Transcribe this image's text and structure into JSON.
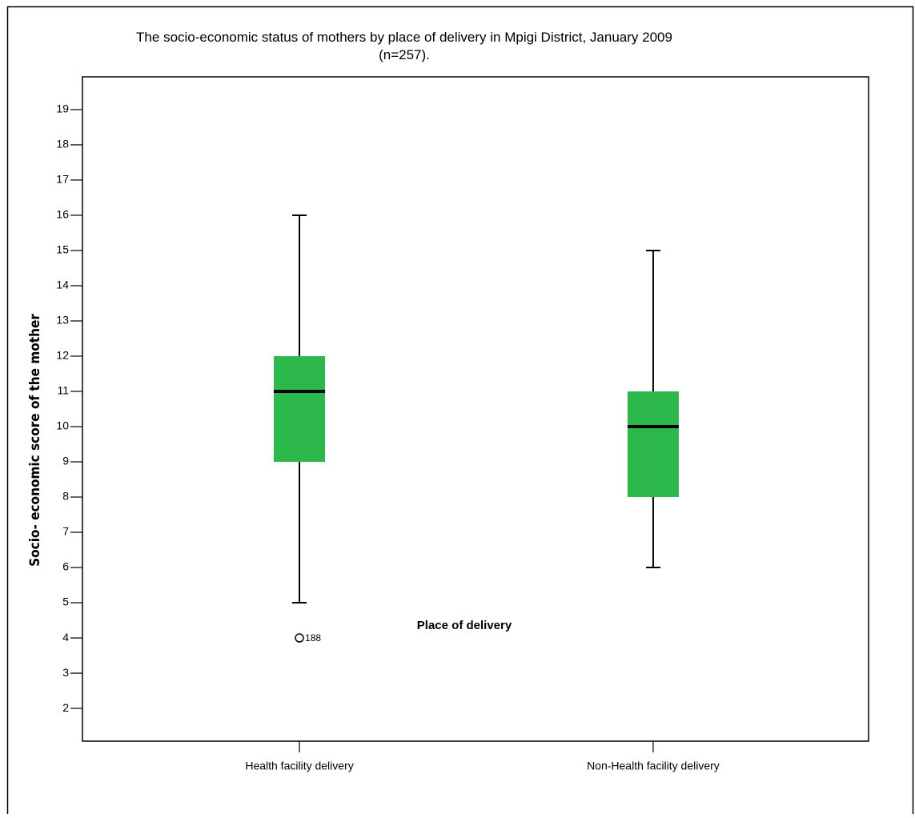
{
  "chart_data": {
    "type": "box",
    "title": "The socio-economic status of mothers by place of delivery in Mpigi District, January 2009 (n=257).",
    "x_label": "Place of delivery",
    "y_label": "Socio- economic score of the mother",
    "categories": [
      "Health facility delivery",
      "Non-Health facility delivery"
    ],
    "boxes": [
      {
        "min": 5,
        "q1": 9,
        "median": 11,
        "q3": 12,
        "max": 16,
        "outliers": [
          4
        ],
        "outlier_labels": [
          "188"
        ]
      },
      {
        "min": 6,
        "q1": 8,
        "median": 10,
        "q3": 11,
        "max": 15,
        "outliers": [],
        "outlier_labels": []
      }
    ],
    "color": "#2db84b",
    "ylim": [
      1.07,
      19.93
    ],
    "yticks": [
      2,
      3,
      4,
      5,
      6,
      7,
      8,
      9,
      10,
      11,
      12,
      13,
      14,
      15,
      16,
      17,
      18,
      19
    ]
  }
}
